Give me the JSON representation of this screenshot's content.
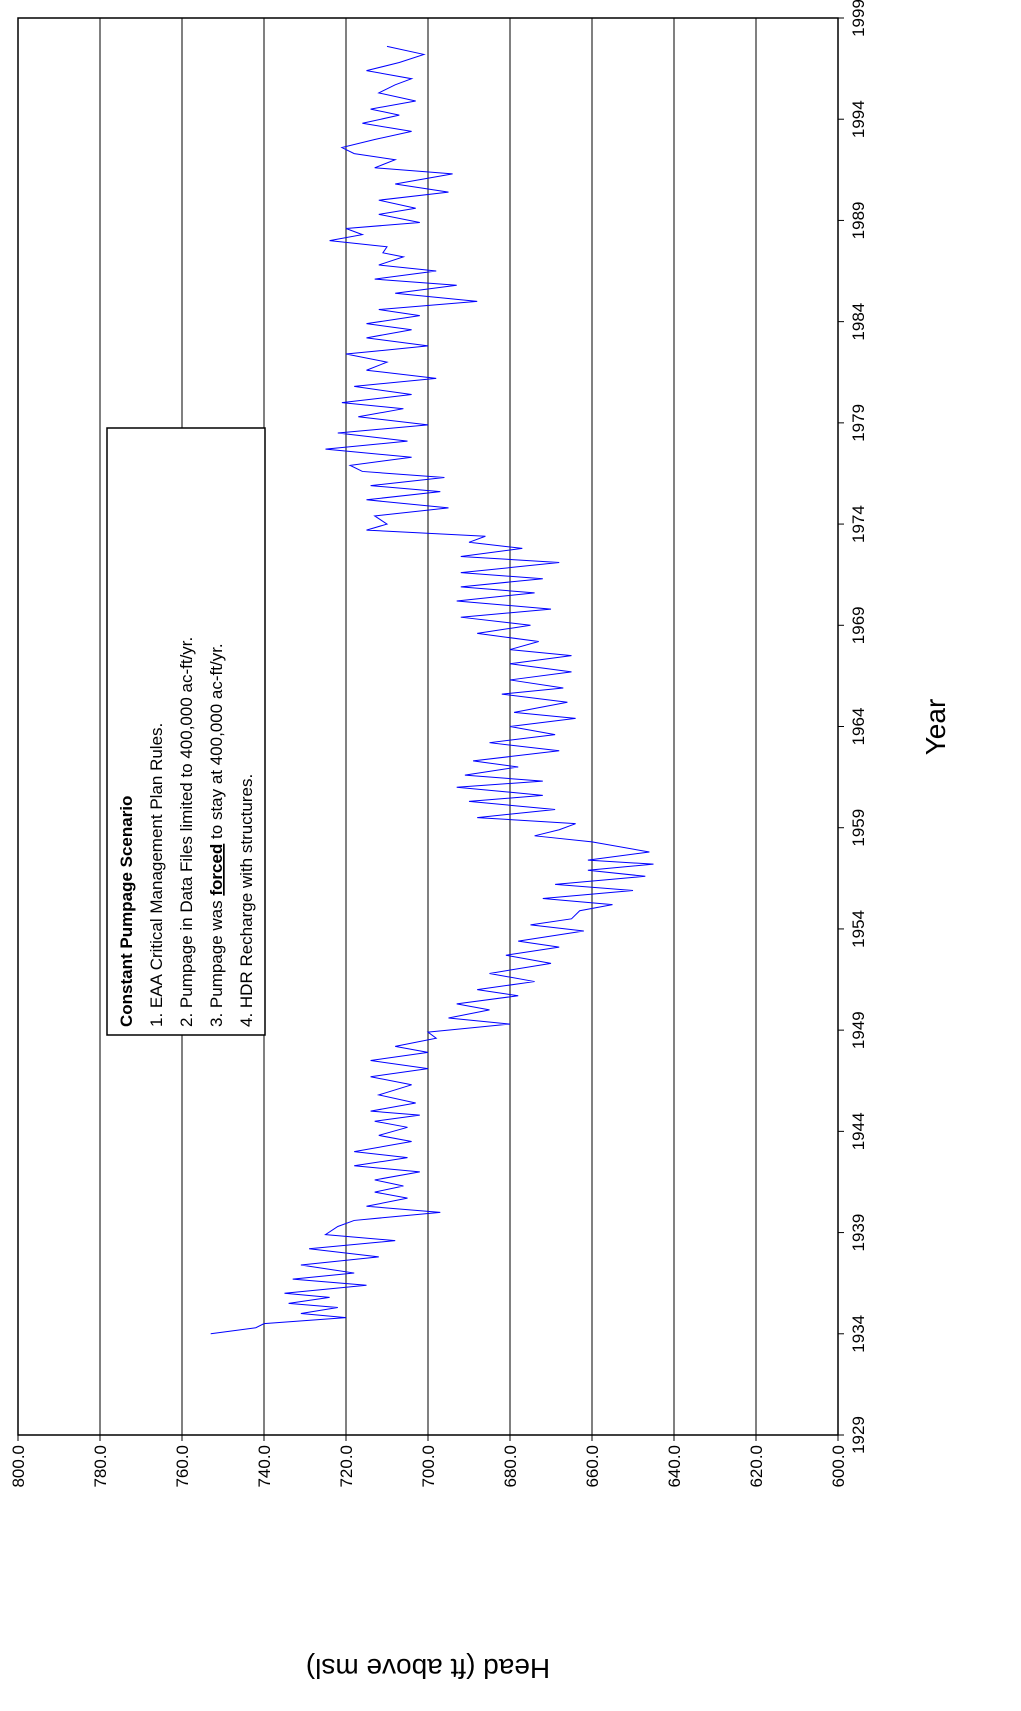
{
  "chart_data": {
    "type": "line",
    "x_label": "Year",
    "y_label": "Head (ft above msl)",
    "annotation": {
      "title": "Constant Pumpage Scenario",
      "lines": [
        "1. EAA Critical Management Plan Rules.",
        "2. Pumpage in Data Files limited to 400,000 ac-ft/yr."
      ],
      "line3": [
        "3. Pumpage was ",
        "forced",
        " to stay at  400,000 ac-ft/yr."
      ],
      "line4": "4. HDR Recharge with structures."
    },
    "xlim": [
      1929,
      1999
    ],
    "xticks": [
      1929,
      1934,
      1939,
      1944,
      1949,
      1954,
      1959,
      1964,
      1969,
      1974,
      1979,
      1984,
      1989,
      1994,
      1999
    ],
    "ylim": [
      600,
      800
    ],
    "yticks": [
      {
        "value": 600,
        "label": "600.0"
      },
      {
        "value": 620,
        "label": "620.0"
      },
      {
        "value": 640,
        "label": "640.0"
      },
      {
        "value": 660,
        "label": "660.0"
      },
      {
        "value": 680,
        "label": "680.0"
      },
      {
        "value": 700,
        "label": "700.0"
      },
      {
        "value": 720,
        "label": "720.0"
      },
      {
        "value": 740,
        "label": "740.0"
      },
      {
        "value": 760,
        "label": "760.0"
      },
      {
        "value": 780,
        "label": "780.0"
      },
      {
        "value": 800,
        "label": "800.0"
      }
    ],
    "grid": true,
    "series": [
      {
        "color": "#0000ff",
        "x": [
          1934.0,
          1934.3,
          1934.5,
          1934.8,
          1935.0,
          1935.3,
          1935.5,
          1935.8,
          1936.0,
          1936.4,
          1936.7,
          1937.0,
          1937.4,
          1937.8,
          1938.2,
          1938.6,
          1938.9,
          1939.3,
          1939.6,
          1940.0,
          1940.3,
          1940.7,
          1941.0,
          1941.3,
          1941.6,
          1942.0,
          1942.3,
          1942.7,
          1943.0,
          1943.5,
          1943.8,
          1944.2,
          1944.5,
          1944.8,
          1945.0,
          1945.4,
          1945.8,
          1946.3,
          1946.7,
          1947.1,
          1947.5,
          1947.9,
          1948.2,
          1948.6,
          1948.9,
          1949.3,
          1949.6,
          1950.0,
          1950.3,
          1950.7,
          1951.0,
          1951.4,
          1951.8,
          1952.3,
          1952.7,
          1953.1,
          1953.4,
          1953.9,
          1954.2,
          1954.5,
          1954.9,
          1955.2,
          1955.5,
          1955.9,
          1956.2,
          1956.6,
          1956.9,
          1957.2,
          1957.4,
          1957.8,
          1958.3,
          1958.6,
          1958.9,
          1959.2,
          1959.5,
          1959.9,
          1960.3,
          1960.6,
          1961.0,
          1961.3,
          1961.6,
          1962.0,
          1962.3,
          1962.8,
          1963.2,
          1963.6,
          1964.0,
          1964.4,
          1964.7,
          1965.2,
          1965.6,
          1965.9,
          1966.3,
          1966.7,
          1967.1,
          1967.5,
          1967.8,
          1968.2,
          1968.6,
          1969.0,
          1969.4,
          1969.8,
          1970.2,
          1970.6,
          1970.9,
          1971.3,
          1971.6,
          1972.1,
          1972.4,
          1972.8,
          1973.1,
          1973.4,
          1973.7,
          1974.0,
          1974.4,
          1974.8,
          1975.2,
          1975.6,
          1975.9,
          1976.3,
          1976.6,
          1976.9,
          1977.3,
          1977.7,
          1978.1,
          1978.5,
          1978.9,
          1979.3,
          1979.7,
          1980.0,
          1980.4,
          1980.8,
          1981.2,
          1981.6,
          1982.0,
          1982.4,
          1982.8,
          1983.2,
          1983.6,
          1983.9,
          1984.3,
          1984.6,
          1985.0,
          1985.4,
          1985.8,
          1986.1,
          1986.5,
          1986.8,
          1987.2,
          1987.4,
          1987.7,
          1988.0,
          1988.3,
          1988.6,
          1988.9,
          1989.3,
          1989.6,
          1990.0,
          1990.4,
          1990.8,
          1991.3,
          1991.6,
          1992.0,
          1992.3,
          1992.6,
          1993.0,
          1993.4,
          1993.8,
          1994.2,
          1994.5,
          1994.9,
          1995.3,
          1995.7,
          1996.0,
          1996.4,
          1996.8,
          1997.2,
          1997.6
        ],
        "values": [
          753,
          742,
          740,
          720,
          731,
          722,
          734,
          724,
          735,
          715,
          733,
          718,
          731,
          712,
          729,
          708,
          725,
          722,
          718,
          697,
          715,
          705,
          713,
          706,
          713,
          702,
          718,
          705,
          718,
          704,
          712,
          705,
          713,
          702,
          714,
          703,
          712,
          704,
          714,
          700,
          714,
          700,
          708,
          698,
          700,
          680,
          695,
          685,
          693,
          678,
          688,
          674,
          685,
          670,
          681,
          668,
          678,
          662,
          675,
          665,
          663,
          655,
          672,
          650,
          669,
          647,
          661,
          645,
          661,
          646,
          660,
          674,
          668,
          664,
          688,
          669,
          690,
          672,
          693,
          672,
          691,
          678,
          689,
          668,
          685,
          669,
          680,
          664,
          679,
          666,
          682,
          667,
          680,
          665,
          680,
          665,
          680,
          673,
          688,
          675,
          692,
          670,
          693,
          674,
          692,
          672,
          692,
          668,
          692,
          677,
          690,
          686,
          715,
          710,
          713,
          695,
          715,
          697,
          714,
          696,
          716,
          719,
          704,
          725,
          705,
          722,
          700,
          717,
          706,
          721,
          704,
          718,
          698,
          715,
          710,
          720,
          700,
          715,
          704,
          715,
          702,
          712,
          688,
          708,
          693,
          713,
          698,
          712,
          706,
          711,
          710,
          724,
          716,
          720,
          702,
          712,
          703,
          712,
          695,
          708,
          694,
          713,
          708,
          718,
          721,
          713,
          704,
          716,
          707,
          714,
          703,
          712,
          708,
          704,
          715,
          707,
          701,
          710
        ]
      }
    ]
  }
}
